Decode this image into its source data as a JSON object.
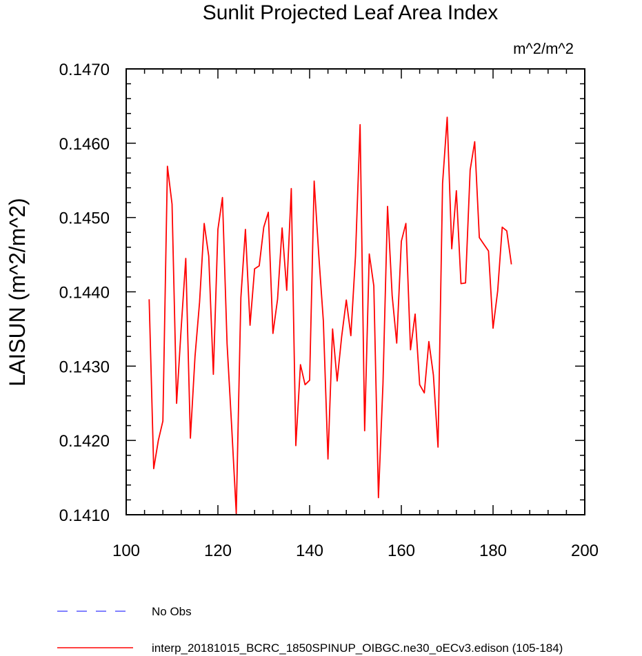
{
  "chart_data": {
    "type": "line",
    "title": "Sunlit Projected Leaf Area Index",
    "units_label": "m^2/m^2",
    "ylabel": "LAISUN  (m^2/m^2)",
    "xlabel": "",
    "xlim": [
      100,
      200
    ],
    "ylim": [
      0.141,
      0.147
    ],
    "x_ticks": [
      100,
      120,
      140,
      160,
      180,
      200
    ],
    "x_tick_labels": [
      "100",
      "120",
      "140",
      "160",
      "180",
      "200"
    ],
    "y_ticks": [
      0.141,
      0.142,
      0.143,
      0.144,
      0.145,
      0.146,
      0.147
    ],
    "y_tick_labels": [
      "0.1410",
      "0.1420",
      "0.1430",
      "0.1440",
      "0.1450",
      "0.1460",
      "0.1470"
    ],
    "series": [
      {
        "name": "interp_20181015_BCRC_1850SPINUP_OIBGC.ne30_oECv3.edison (105-184)",
        "color": "#ff0000",
        "style": "solid",
        "x": [
          105,
          106,
          107,
          108,
          109,
          110,
          111,
          112,
          113,
          114,
          115,
          116,
          117,
          118,
          119,
          120,
          121,
          122,
          123,
          124,
          125,
          126,
          127,
          128,
          129,
          130,
          131,
          132,
          133,
          134,
          135,
          136,
          137,
          138,
          139,
          140,
          141,
          142,
          143,
          144,
          145,
          146,
          147,
          148,
          149,
          150,
          151,
          152,
          153,
          154,
          155,
          156,
          157,
          158,
          159,
          160,
          161,
          162,
          163,
          164,
          165,
          166,
          167,
          168,
          169,
          170,
          171,
          172,
          173,
          174,
          175,
          176,
          177,
          178,
          179,
          180,
          181,
          182,
          183,
          184
        ],
        "values": [
          0.1439,
          0.14162,
          0.142,
          0.14226,
          0.14569,
          0.14518,
          0.1425,
          0.14352,
          0.14445,
          0.14203,
          0.14313,
          0.14386,
          0.14492,
          0.14448,
          0.14289,
          0.14484,
          0.14527,
          0.1433,
          0.14218,
          0.14102,
          0.14392,
          0.14484,
          0.14355,
          0.14431,
          0.14435,
          0.14487,
          0.14507,
          0.14344,
          0.1439,
          0.14486,
          0.14402,
          0.14539,
          0.14193,
          0.14302,
          0.14275,
          0.14281,
          0.14549,
          0.14449,
          0.14361,
          0.14175,
          0.1435,
          0.1428,
          0.1434,
          0.14389,
          0.14341,
          0.14448,
          0.14625,
          0.14213,
          0.14451,
          0.14408,
          0.14123,
          0.14277,
          0.14515,
          0.14395,
          0.14331,
          0.14468,
          0.14492,
          0.14322,
          0.1437,
          0.14275,
          0.14264,
          0.14333,
          0.14288,
          0.14191,
          0.14546,
          0.14635,
          0.14458,
          0.14536,
          0.14411,
          0.14412,
          0.14564,
          0.14602,
          0.14473,
          0.14464,
          0.14455,
          0.14351,
          0.14401,
          0.14487,
          0.14482,
          0.14437
        ]
      },
      {
        "name": "No Obs",
        "color": "#0000ff",
        "style": "dashed",
        "x": [],
        "values": []
      }
    ],
    "legend_position": "bottom-left",
    "grid": false
  }
}
